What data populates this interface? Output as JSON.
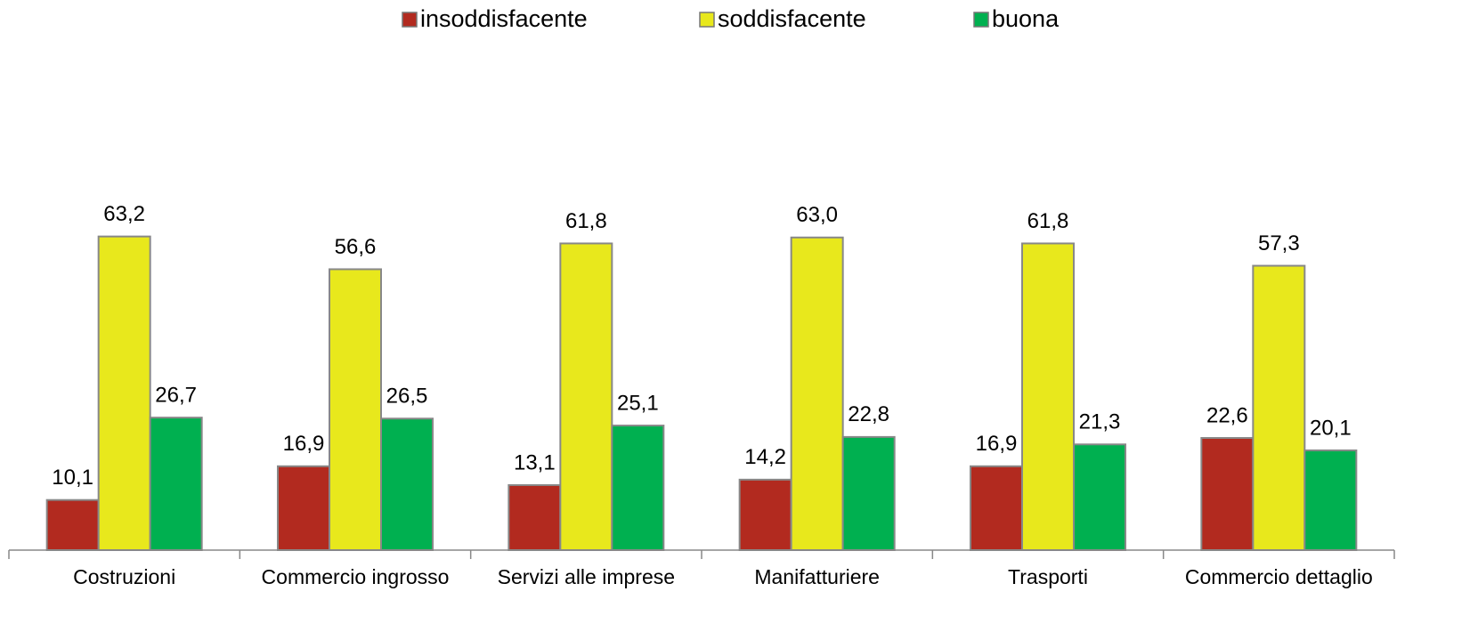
{
  "chart_data": {
    "type": "bar",
    "categories": [
      "Costruzioni",
      "Commercio ingrosso",
      "Servizi alle imprese",
      "Manifatturiere",
      "Trasporti",
      "Commercio dettaglio"
    ],
    "series": [
      {
        "name": "insoddisfacente",
        "color": "#b22a1f",
        "values": [
          10.1,
          16.9,
          13.1,
          14.2,
          16.9,
          22.6
        ],
        "value_labels": [
          "10,1",
          "16,9",
          "13,1",
          "14,2",
          "16,9",
          "22,6"
        ]
      },
      {
        "name": "soddisfacente",
        "color": "#e8e81c",
        "values": [
          63.2,
          56.6,
          61.8,
          63.0,
          61.8,
          57.3
        ],
        "value_labels": [
          "63,2",
          "56,6",
          "61,8",
          "63,0",
          "61,8",
          "57,3"
        ]
      },
      {
        "name": "buona",
        "color": "#00b050",
        "values": [
          26.7,
          26.5,
          25.1,
          22.8,
          21.3,
          20.1
        ],
        "value_labels": [
          "26,7",
          "26,5",
          "25,1",
          "22,8",
          "21,3",
          "20,1"
        ]
      }
    ],
    "ylim": [
      0,
      80
    ],
    "legend": "top"
  }
}
